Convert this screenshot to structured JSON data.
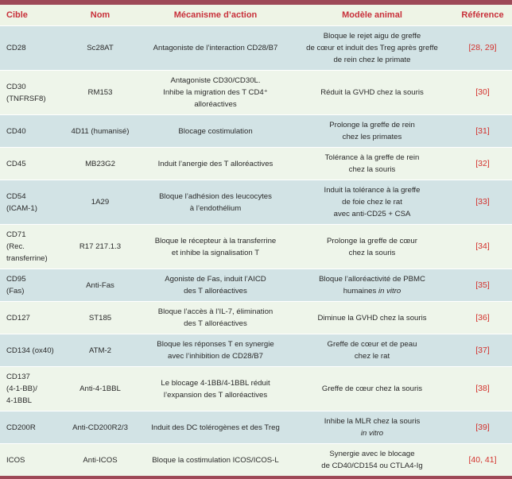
{
  "headers": [
    "Cible",
    "Nom",
    "Mécanisme d’action",
    "Modèle animal",
    "Référence"
  ],
  "colors": {
    "bar": "#9d4957",
    "header_text": "#c8303a",
    "row_alt": "#d2e3e5",
    "row": "#eef5ea",
    "reference": "#d3312c"
  },
  "rows": [
    {
      "cible": [
        "CD28"
      ],
      "nom": "Sc28AT",
      "mecanisme": [
        "Antagoniste de l’interaction CD28/B7"
      ],
      "modele": [
        "Bloque le rejet aigu de greffe",
        "de cœur et induit des Treg après greffe",
        "de rein chez le primate"
      ],
      "ref": "[28, 29]"
    },
    {
      "cible": [
        "CD30",
        "(TNFRSF8)"
      ],
      "nom": "RM153",
      "mecanisme": [
        "Antagoniste CD30/CD30L.",
        "Inhibe la migration des T CD4⁺",
        "alloréactives"
      ],
      "modele": [
        "Réduit la GVHD chez la souris"
      ],
      "ref": "[30]"
    },
    {
      "cible": [
        "CD40"
      ],
      "nom": "4D11 (humanisé)",
      "mecanisme": [
        "Blocage costimulation"
      ],
      "modele": [
        "Prolonge la greffe de rein",
        "chez les primates"
      ],
      "ref": "[31]"
    },
    {
      "cible": [
        "CD45"
      ],
      "nom": "MB23G2",
      "mecanisme": [
        "Induit l’anergie des T alloréactives"
      ],
      "modele": [
        "Tolérance à la greffe de rein",
        "chez la souris"
      ],
      "ref": "[32]"
    },
    {
      "cible": [
        "CD54",
        "(ICAM-1)"
      ],
      "nom": "1A29",
      "mecanisme": [
        "Bloque l’adhésion des leucocytes",
        "à l’endothélium"
      ],
      "modele": [
        "Induit la tolérance à la greffe",
        "de foie chez le rat",
        "avec anti-CD25 + CSA"
      ],
      "ref": "[33]"
    },
    {
      "cible": [
        "CD71",
        "(Rec.",
        "transferrine)"
      ],
      "nom": "R17 217.1.3",
      "mecanisme": [
        "Bloque le récepteur à la transferrine",
        "et inhibe la signalisation T"
      ],
      "modele": [
        "Prolonge la greffe de cœur",
        "chez la souris"
      ],
      "ref": "[34]"
    },
    {
      "cible": [
        "CD95",
        "(Fas)"
      ],
      "nom": "Anti-Fas",
      "mecanisme": [
        "Agoniste de Fas, induit l’AICD",
        "des T alloréactives"
      ],
      "modele": [
        "Bloque l’alloréactivité de PBMC",
        "humaines",
        "in vitro"
      ],
      "ref": "[35]"
    },
    {
      "cible": [
        "CD127"
      ],
      "nom": "ST185",
      "mecanisme": [
        "Bloque l’accès à l’IL-7, élimination",
        "des T alloréactives"
      ],
      "modele": [
        "Diminue la GVHD chez la souris"
      ],
      "ref": "[36]"
    },
    {
      "cible": [
        "CD134 (ox40)"
      ],
      "nom": "ATM-2",
      "mecanisme": [
        "Bloque les réponses T en synergie",
        "avec l’inhibition de CD28/B7"
      ],
      "modele": [
        "Greffe de cœur et de peau",
        "chez le rat"
      ],
      "ref": "[37]"
    },
    {
      "cible": [
        "CD137",
        "(4-1-BB)/",
        "4-1BBL"
      ],
      "nom": "Anti-4-1BBL",
      "mecanisme": [
        "Le blocage 4-1BB/4-1BBL réduit",
        "l’expansion des T alloréactives"
      ],
      "modele": [
        "Greffe de cœur chez la souris"
      ],
      "ref": "[38]"
    },
    {
      "cible": [
        "CD200R"
      ],
      "nom": "Anti-CD200R2/3",
      "mecanisme": [
        "Induit des DC tolérogènes et des Treg"
      ],
      "modele": [
        "Inhibe la MLR chez la souris",
        "in vitro"
      ],
      "ref": "[39]"
    },
    {
      "cible": [
        "ICOS"
      ],
      "nom": "Anti-ICOS",
      "mecanisme": [
        "Bloque la costimulation ICOS/ICOS-L"
      ],
      "modele": [
        "Synergie avec le blocage",
        "de CD40/CD154 ou CTLA4-Ig"
      ],
      "ref": "[40, 41]"
    }
  ]
}
